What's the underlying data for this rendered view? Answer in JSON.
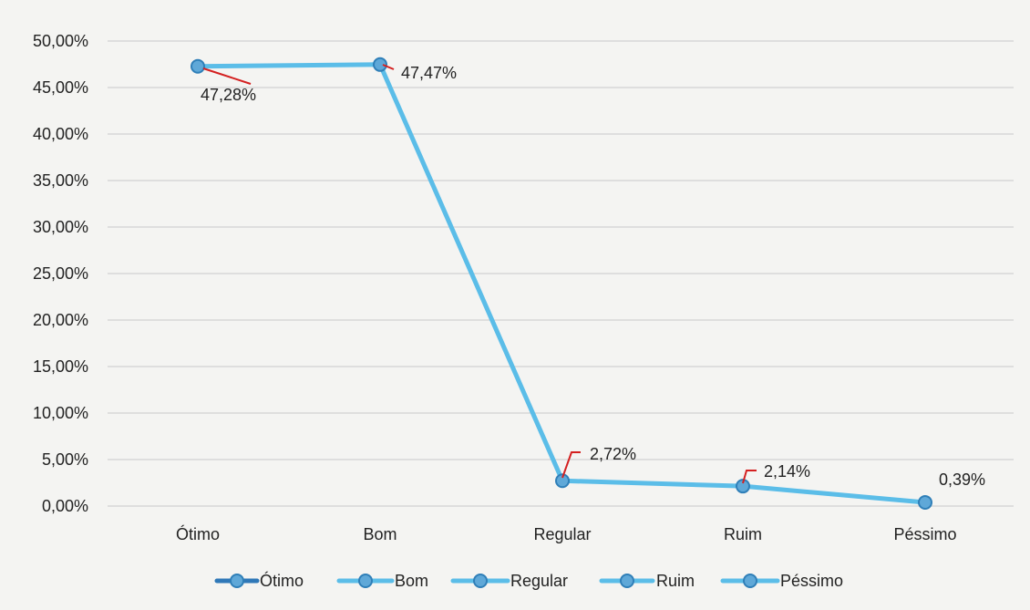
{
  "chart_data": {
    "type": "line",
    "categories": [
      "Ótimo",
      "Bom",
      "Regular",
      "Ruim",
      "Péssimo"
    ],
    "series": [
      {
        "values": [
          47.28,
          47.47,
          2.72,
          2.14,
          0.39
        ]
      }
    ],
    "data_labels": [
      "47,28%",
      "47,47%",
      "2,72%",
      "2,14%",
      "0,39%"
    ],
    "ylim": [
      0,
      50
    ],
    "y_ticks": [
      {
        "value": 0,
        "label": "0,00%"
      },
      {
        "value": 5,
        "label": "5,00%"
      },
      {
        "value": 10,
        "label": "10,00%"
      },
      {
        "value": 15,
        "label": "15,00%"
      },
      {
        "value": 20,
        "label": "20,00%"
      },
      {
        "value": 25,
        "label": "25,00%"
      },
      {
        "value": 30,
        "label": "30,00%"
      },
      {
        "value": 35,
        "label": "35,00%"
      },
      {
        "value": 40,
        "label": "40,00%"
      },
      {
        "value": 45,
        "label": "45,00%"
      },
      {
        "value": 50,
        "label": "50,00%"
      }
    ],
    "grid": true,
    "legend_position": "bottom",
    "legend": [
      "Ótimo",
      "Bom",
      "Regular",
      "Ruim",
      "Péssimo"
    ],
    "colors": {
      "line": "#5bbde8",
      "marker_fill": "#5fa8d8",
      "marker_stroke": "#2f7fb8",
      "legend_first": "#2f78b8",
      "leader_line": "#d42020"
    }
  }
}
